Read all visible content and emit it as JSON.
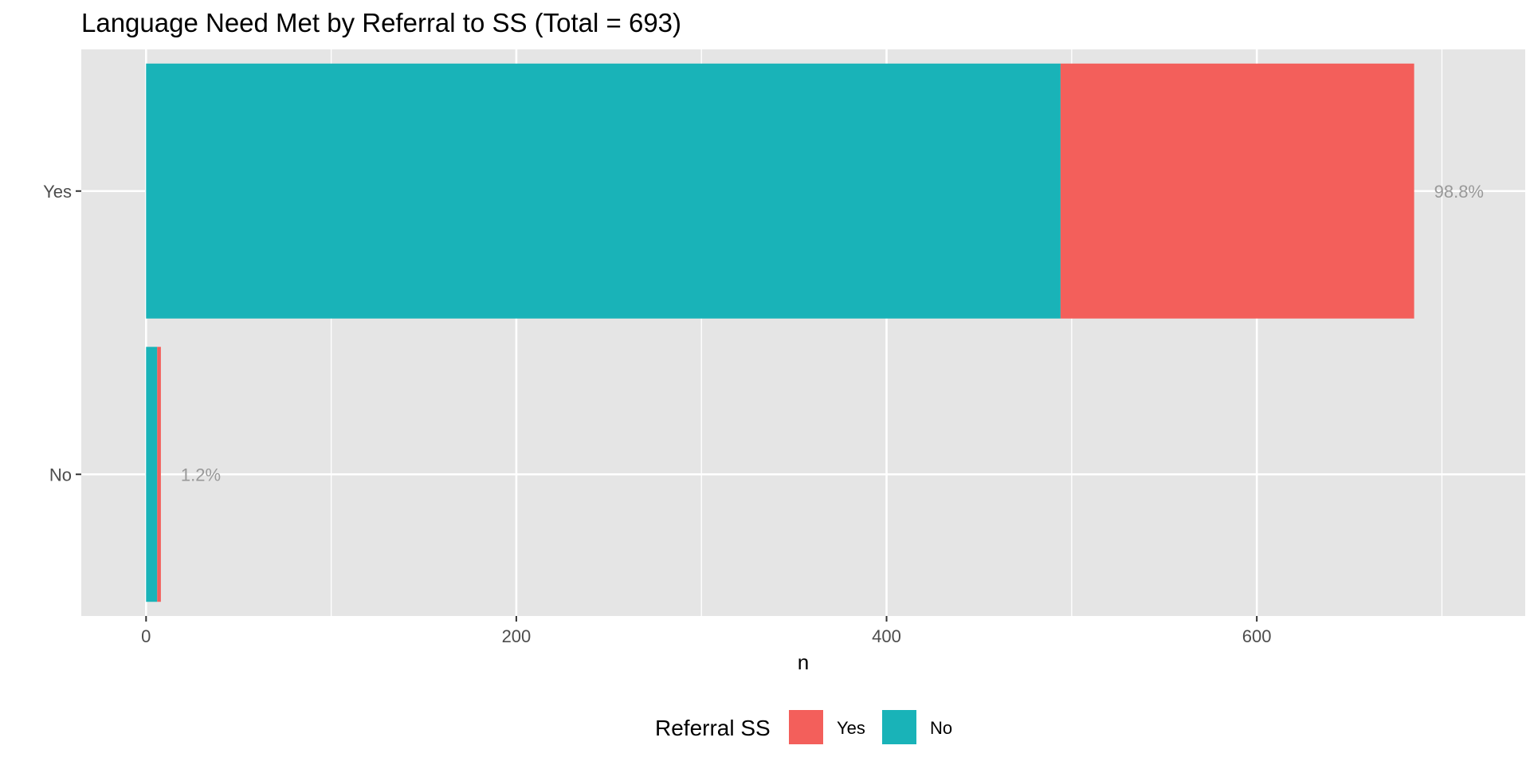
{
  "chart_data": {
    "type": "bar",
    "orientation": "horizontal",
    "stacked": true,
    "title": "Language Need Met by Referral to SS (Total = 693)",
    "xlabel": "n",
    "ylabel": "",
    "categories": [
      "Yes",
      "No"
    ],
    "series": [
      {
        "name": "No",
        "color": "#19B3B8",
        "values": [
          494,
          6
        ]
      },
      {
        "name": "Yes",
        "color": "#F35F5B",
        "values": [
          191,
          2
        ]
      }
    ],
    "percent_labels": [
      "98.8%",
      "1.2%"
    ],
    "xlim": [
      -35,
      745
    ],
    "xticks": [
      0,
      200,
      400,
      600
    ],
    "grid": true,
    "legend": {
      "title": "Referral SS",
      "position": "bottom",
      "entries": [
        {
          "label": "Yes",
          "color": "#F35F5B"
        },
        {
          "label": "No",
          "color": "#19B3B8"
        }
      ]
    }
  }
}
